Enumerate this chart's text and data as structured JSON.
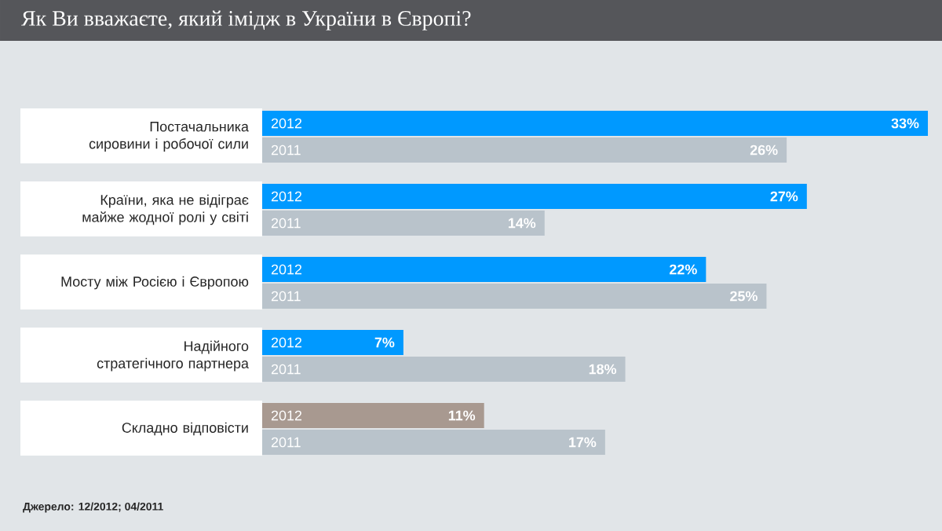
{
  "chart_data": {
    "type": "bar",
    "orientation": "horizontal",
    "title": "Як Ви вважаєте, який імідж в України в Європі?",
    "annotations": [
      "Джерело: 12/2012; 04/2011"
    ],
    "legend": false,
    "categories": [
      "Постачальника сировини і робочої сили",
      "Країни, яка не відіграє майже жодної ролі у світі",
      "Мосту між Росією і Європою",
      "Надійного стратегічного партнера",
      "Складно відповісти"
    ],
    "series": [
      {
        "name": "2012",
        "color": "#0099ff",
        "colors": [
          null,
          null,
          null,
          null,
          "#a89990"
        ],
        "values": [
          33,
          27,
          22,
          7,
          11
        ],
        "value_labels": [
          "33%",
          "27%",
          "22%",
          "7%",
          "11%"
        ]
      },
      {
        "name": "2011",
        "color": "#b9c3cb",
        "values": [
          26,
          14,
          25,
          18,
          17
        ],
        "value_labels": [
          "26%",
          "14%",
          "25%",
          "18%",
          "17%"
        ]
      }
    ]
  }
}
